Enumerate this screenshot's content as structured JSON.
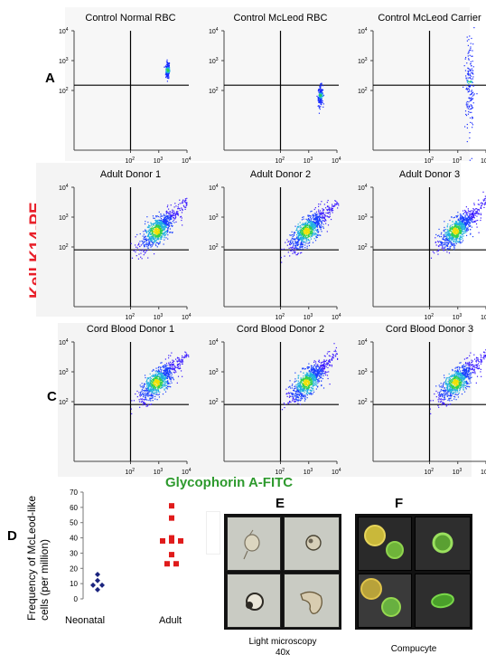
{
  "rows": [
    {
      "letter": "A",
      "plots": [
        "Control Normal RBC",
        "Control McLeod RBC",
        "Control McLeod Carrier"
      ]
    },
    {
      "letter": "B",
      "plots": [
        "Adult Donor 1",
        "Adult Donor 2",
        "Adult Donor 3"
      ]
    },
    {
      "letter": "C",
      "plots": [
        "Cord Blood Donor 1",
        "Cord Blood Donor 2",
        "Cord Blood Donor 3"
      ]
    }
  ],
  "axis": {
    "ylabel": "Kell K14-PE",
    "xlabel": "Glycophorin A-FITC"
  },
  "panel_d": {
    "letter": "D",
    "ylabel": "Frequency of McLeod-like cells (per million)"
  },
  "panel_e": {
    "letter": "E",
    "caption_line1": "Light microscopy",
    "caption_line2": "40x"
  },
  "panel_f": {
    "letter": "F",
    "caption": "Compucyte"
  },
  "chart_data": [
    {
      "type": "scatter",
      "title": "Control Normal RBC",
      "xlabel": "Glycophorin A-FITC",
      "ylabel": "Kell K14-PE",
      "xscale": "log",
      "yscale": "log",
      "xlim": [
        1,
        10000
      ],
      "ylim": [
        1,
        10000
      ],
      "gate": {
        "x": 100,
        "y": 150
      },
      "population": {
        "x": 2000,
        "y": 500,
        "spread": 0.1
      }
    },
    {
      "type": "scatter",
      "title": "Control McLeod RBC",
      "xscale": "log",
      "yscale": "log",
      "xlim": [
        1,
        10000
      ],
      "ylim": [
        1,
        10000
      ],
      "gate": {
        "x": 100,
        "y": 150
      },
      "population": {
        "x": 2500,
        "y": 70,
        "spread": 0.12
      }
    },
    {
      "type": "scatter",
      "title": "Control McLeod Carrier",
      "xscale": "log",
      "yscale": "log",
      "xlim": [
        1,
        10000
      ],
      "ylim": [
        1,
        10000
      ],
      "gate": {
        "x": 100,
        "y": 150
      },
      "population": {
        "x": 2500,
        "y": 200,
        "spread": 0.3
      }
    },
    {
      "type": "scatter",
      "title": "Adult Donor 1",
      "xscale": "log",
      "yscale": "log",
      "xlim": [
        1,
        10000
      ],
      "ylim": [
        1,
        10000
      ],
      "gate": {
        "x": 100,
        "y": 80
      },
      "population": {
        "x": 800,
        "y": 350,
        "spread": 0.55
      }
    },
    {
      "type": "scatter",
      "title": "Adult Donor 2",
      "xscale": "log",
      "yscale": "log",
      "xlim": [
        1,
        10000
      ],
      "ylim": [
        1,
        10000
      ],
      "gate": {
        "x": 100,
        "y": 80
      },
      "population": {
        "x": 800,
        "y": 350,
        "spread": 0.55
      }
    },
    {
      "type": "scatter",
      "title": "Adult Donor 3",
      "xscale": "log",
      "yscale": "log",
      "xlim": [
        1,
        10000
      ],
      "ylim": [
        1,
        10000
      ],
      "gate": {
        "x": 100,
        "y": 80
      },
      "population": {
        "x": 800,
        "y": 350,
        "spread": 0.55
      }
    },
    {
      "type": "scatter",
      "title": "Cord Blood Donor 1",
      "xscale": "log",
      "yscale": "log",
      "xlim": [
        1,
        10000
      ],
      "ylim": [
        1,
        10000
      ],
      "gate": {
        "x": 100,
        "y": 80
      },
      "population": {
        "x": 800,
        "y": 450,
        "spread": 0.55
      }
    },
    {
      "type": "scatter",
      "title": "Cord Blood Donor 2",
      "xscale": "log",
      "yscale": "log",
      "xlim": [
        1,
        10000
      ],
      "ylim": [
        1,
        10000
      ],
      "gate": {
        "x": 100,
        "y": 80
      },
      "population": {
        "x": 800,
        "y": 450,
        "spread": 0.55
      }
    },
    {
      "type": "scatter",
      "title": "Cord Blood Donor 3",
      "xscale": "log",
      "yscale": "log",
      "xlim": [
        1,
        10000
      ],
      "ylim": [
        1,
        10000
      ],
      "gate": {
        "x": 100,
        "y": 80
      },
      "population": {
        "x": 800,
        "y": 450,
        "spread": 0.55
      }
    },
    {
      "type": "scatter",
      "title": "",
      "ylabel": "Frequency of McLeod-like cells (per million)",
      "categories": [
        "Neonatal",
        "Adult"
      ],
      "ylim": [
        0,
        70
      ],
      "yticks": [
        0,
        10,
        20,
        30,
        40,
        50,
        60,
        70
      ],
      "series": [
        {
          "category": "Neonatal",
          "color": "#1a237e",
          "marker": "diamond",
          "values": [
            16,
            12,
            9,
            9,
            6
          ]
        },
        {
          "category": "Adult",
          "color": "#e01b1b",
          "marker": "square",
          "values": [
            61,
            53,
            40,
            38,
            38,
            38,
            29,
            23,
            23
          ]
        }
      ]
    }
  ]
}
